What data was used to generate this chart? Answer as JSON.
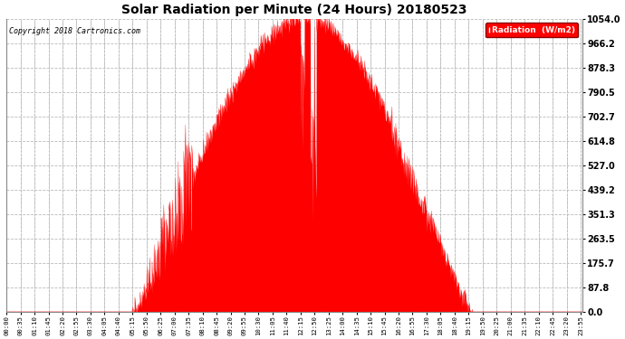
{
  "title": "Solar Radiation per Minute (24 Hours) 20180523",
  "copyright": "Copyright 2018 Cartronics.com",
  "legend_label": "Radiation  (W/m2)",
  "bg_color": "#ffffff",
  "plot_bg_color": "#ffffff",
  "bar_color": "#ff0000",
  "grid_color": "#bbbbbb",
  "yticks": [
    0.0,
    87.8,
    175.7,
    263.5,
    351.3,
    439.2,
    527.0,
    614.8,
    702.7,
    790.5,
    878.3,
    966.2,
    1054.0
  ],
  "ymax": 1054.0,
  "total_minutes": 1440,
  "sunrise_minute": 315,
  "sunset_minute": 1165,
  "peak_minute": 745,
  "peak_value": 1054.0,
  "xtick_step": 35
}
